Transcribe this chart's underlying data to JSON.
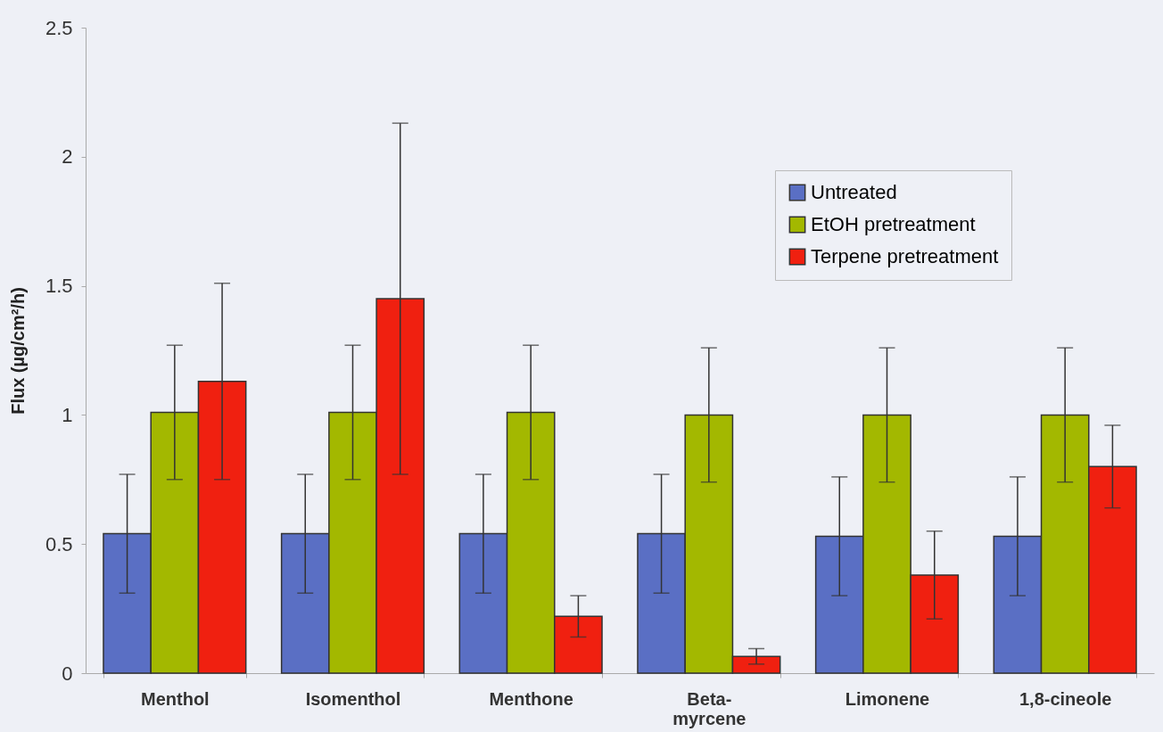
{
  "chart_data": {
    "type": "bar",
    "ylabel": "Flux (µg/cm²/h)",
    "categories": [
      "Menthol",
      "Isomenthol",
      "Menthone",
      "Beta-\nmyrcene",
      "Limonene",
      "1,8-cineole"
    ],
    "series": [
      {
        "name": "Untreated",
        "color": "#5a6fc4",
        "values": [
          0.54,
          0.54,
          0.54,
          0.54,
          0.53,
          0.53
        ],
        "errors": [
          0.23,
          0.23,
          0.23,
          0.23,
          0.23,
          0.23
        ]
      },
      {
        "name": "EtOH pretreatment",
        "color": "#a3b800",
        "values": [
          1.01,
          1.01,
          1.01,
          1.0,
          1.0,
          1.0
        ],
        "errors": [
          0.26,
          0.26,
          0.26,
          0.26,
          0.26,
          0.26
        ]
      },
      {
        "name": "Terpene pretreatment",
        "color": "#f02010",
        "values": [
          1.13,
          1.45,
          0.22,
          0.065,
          0.38,
          0.8
        ],
        "errors": [
          0.38,
          0.68,
          0.08,
          0.03,
          0.17,
          0.16
        ]
      }
    ],
    "ylim": [
      0,
      2.5
    ],
    "yticks": [
      0,
      0.5,
      1,
      1.5,
      2,
      2.5
    ],
    "grid": false,
    "legend": "top right"
  }
}
